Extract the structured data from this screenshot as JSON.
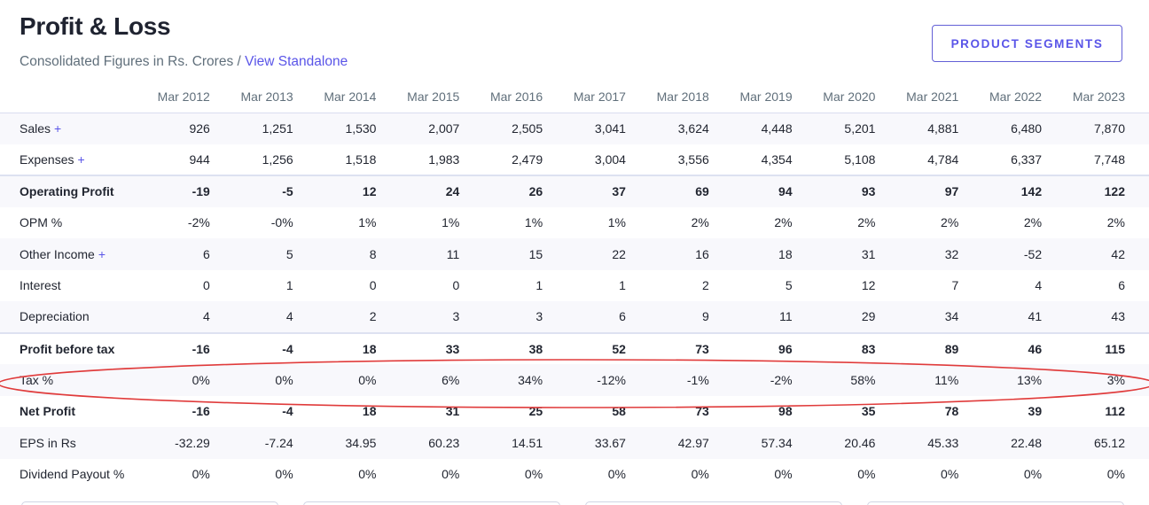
{
  "header": {
    "title": "Profit & Loss",
    "subtitle_prefix": "Consolidated Figures in Rs. Crores / ",
    "subtitle_link": "View Standalone",
    "segments_button": "PRODUCT SEGMENTS"
  },
  "colors": {
    "accent": "#5a55e8",
    "annotation": "#e03b3b",
    "stripe": "#f8f8fc"
  },
  "table": {
    "columns": [
      "Mar 2012",
      "Mar 2013",
      "Mar 2014",
      "Mar 2015",
      "Mar 2016",
      "Mar 2017",
      "Mar 2018",
      "Mar 2019",
      "Mar 2020",
      "Mar 2021",
      "Mar 2022",
      "Mar 2023"
    ],
    "rows": [
      {
        "label": "Sales",
        "expandable": true,
        "bold": false,
        "values": [
          "926",
          "1,251",
          "1,530",
          "2,007",
          "2,505",
          "3,041",
          "3,624",
          "4,448",
          "5,201",
          "4,881",
          "6,480",
          "7,870"
        ]
      },
      {
        "label": "Expenses",
        "expandable": true,
        "bold": false,
        "values": [
          "944",
          "1,256",
          "1,518",
          "1,983",
          "2,479",
          "3,004",
          "3,556",
          "4,354",
          "5,108",
          "4,784",
          "6,337",
          "7,748"
        ]
      },
      {
        "label": "Operating Profit",
        "expandable": false,
        "bold": true,
        "values": [
          "-19",
          "-5",
          "12",
          "24",
          "26",
          "37",
          "69",
          "94",
          "93",
          "97",
          "142",
          "122"
        ]
      },
      {
        "label": "OPM %",
        "expandable": false,
        "bold": false,
        "values": [
          "-2%",
          "-0%",
          "1%",
          "1%",
          "1%",
          "1%",
          "2%",
          "2%",
          "2%",
          "2%",
          "2%",
          "2%"
        ]
      },
      {
        "label": "Other Income",
        "expandable": true,
        "bold": false,
        "values": [
          "6",
          "5",
          "8",
          "11",
          "15",
          "22",
          "16",
          "18",
          "31",
          "32",
          "-52",
          "42"
        ]
      },
      {
        "label": "Interest",
        "expandable": false,
        "bold": false,
        "values": [
          "0",
          "1",
          "0",
          "0",
          "1",
          "1",
          "2",
          "5",
          "12",
          "7",
          "4",
          "6"
        ]
      },
      {
        "label": "Depreciation",
        "expandable": false,
        "bold": false,
        "values": [
          "4",
          "4",
          "2",
          "3",
          "3",
          "6",
          "9",
          "11",
          "29",
          "34",
          "41",
          "43"
        ]
      },
      {
        "label": "Profit before tax",
        "expandable": false,
        "bold": true,
        "values": [
          "-16",
          "-4",
          "18",
          "33",
          "38",
          "52",
          "73",
          "96",
          "83",
          "89",
          "46",
          "115"
        ]
      },
      {
        "label": "Tax %",
        "expandable": false,
        "bold": false,
        "values": [
          "0%",
          "0%",
          "0%",
          "6%",
          "34%",
          "-12%",
          "-1%",
          "-2%",
          "58%",
          "11%",
          "13%",
          "3%"
        ]
      },
      {
        "label": "Net Profit",
        "expandable": false,
        "bold": true,
        "values": [
          "-16",
          "-4",
          "18",
          "31",
          "25",
          "58",
          "73",
          "98",
          "35",
          "78",
          "39",
          "112"
        ]
      },
      {
        "label": "EPS in Rs",
        "expandable": false,
        "bold": false,
        "values": [
          "-32.29",
          "-7.24",
          "34.95",
          "60.23",
          "14.51",
          "33.67",
          "42.97",
          "57.34",
          "20.46",
          "45.33",
          "22.48",
          "65.12"
        ]
      },
      {
        "label": "Dividend Payout %",
        "expandable": false,
        "bold": false,
        "values": [
          "0%",
          "0%",
          "0%",
          "0%",
          "0%",
          "0%",
          "0%",
          "0%",
          "0%",
          "0%",
          "0%",
          "0%"
        ]
      }
    ]
  }
}
